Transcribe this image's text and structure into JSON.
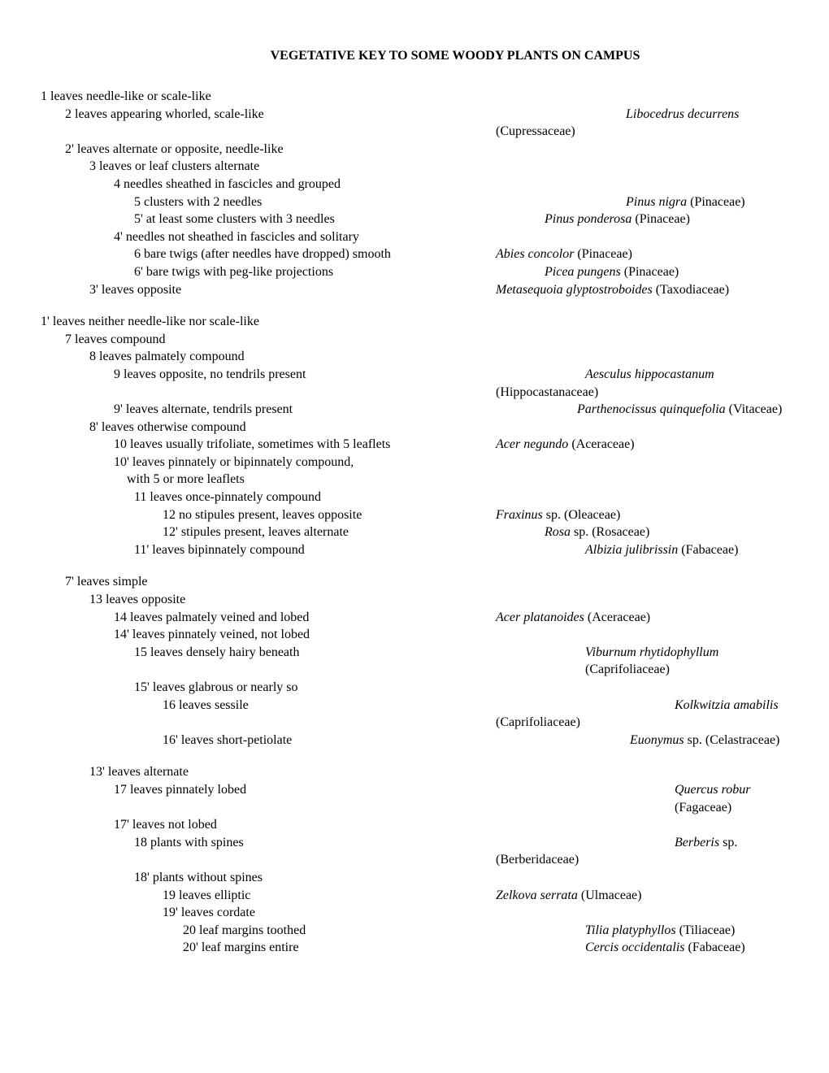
{
  "title": "VEGETATIVE KEY TO SOME WOODY PLANTS ON CAMPUS",
  "rows": [
    {
      "leadIndent": 0,
      "lead": "1 leaves needle-like or scale-like",
      "taxon": "",
      "family": "",
      "resIndent": 0
    },
    {
      "leadIndent": 1,
      "lead": "2 leaves appearing whorled, scale-like",
      "taxon": "Libocedrus decurrens",
      "family": "",
      "resIndent": 4
    },
    {
      "leadIndent": 1,
      "lead": "",
      "taxon": "",
      "family": "(Cupressaceae)",
      "resIndent": 0
    },
    {
      "leadIndent": 1,
      "lead": "2' leaves alternate or opposite, needle-like",
      "taxon": "",
      "family": "",
      "resIndent": 0
    },
    {
      "leadIndent": 2,
      "lead": "3 leaves or leaf clusters alternate",
      "taxon": "",
      "family": "",
      "resIndent": 0
    },
    {
      "leadIndent": 3,
      "lead": "4 needles sheathed in fascicles and grouped",
      "taxon": "",
      "family": "",
      "resIndent": 0
    },
    {
      "leadIndent": 4,
      "lead": "5  clusters with 2 needles",
      "taxon": "Pinus nigra ",
      "family": "(Pinaceae)",
      "resIndent": 4
    },
    {
      "leadIndent": 4,
      "lead": "5' at least some clusters with 3 needles",
      "taxon": "Pinus ponderosa ",
      "family": "(Pinaceae)",
      "resIndent": 1
    },
    {
      "leadIndent": 3,
      "lead": "4' needles not sheathed in fascicles and solitary",
      "taxon": "",
      "family": "",
      "resIndent": 0
    },
    {
      "leadIndent": 4,
      "lead": "6 bare twigs (after needles have dropped) smooth",
      "taxon": "Abies concolor ",
      "family": "(Pinaceae)",
      "resIndent": 0
    },
    {
      "leadIndent": 4,
      "lead": "6' bare twigs with peg-like projections",
      "taxon": "Picea pungens ",
      "family": "(Pinaceae)",
      "resIndent": 1
    },
    {
      "leadIndent": 2,
      "lead": "3' leaves opposite",
      "taxon": "Metasequoia glyptostroboides ",
      "family": "(Taxodiaceae)",
      "resIndent": 0
    },
    {
      "spacer": true
    },
    {
      "leadIndent": 0,
      "lead": "1'  leaves neither needle-like nor scale-like",
      "taxon": "",
      "family": "",
      "resIndent": 0
    },
    {
      "leadIndent": 1,
      "lead": "7 leaves compound",
      "taxon": "",
      "family": "",
      "resIndent": 0
    },
    {
      "leadIndent": 2,
      "lead": "8 leaves palmately compound",
      "taxon": "",
      "family": "",
      "resIndent": 0
    },
    {
      "leadIndent": 3,
      "lead": "9 leaves opposite, no tendrils present",
      "taxon": "Aesculus hippocastanum",
      "family": "",
      "resIndent": 3
    },
    {
      "leadIndent": 3,
      "lead": "",
      "taxon": "",
      "family": "(Hippocastanaceae)",
      "resIndent": 0
    },
    {
      "leadIndent": 3,
      "lead": "9' leaves alternate, tendrils present",
      "taxon": "Parthenocissus quinquefolia ",
      "family": "(Vitaceae)",
      "resIndent": 2
    },
    {
      "leadIndent": 2,
      "lead": "8' leaves otherwise compound",
      "taxon": "",
      "family": "",
      "resIndent": 0
    },
    {
      "leadIndent": 3,
      "lead": "10 leaves usually trifoliate, sometimes with 5 leaflets",
      "taxon": "Acer negundo ",
      "family": "(Aceraceae)",
      "resIndent": 0
    },
    {
      "leadIndent": 3,
      "lead": "10' leaves pinnately or bipinnately compound,",
      "taxon": "",
      "family": "",
      "resIndent": 0
    },
    {
      "leadIndent": 3,
      "lead": "    with 5 or more leaflets",
      "taxon": "",
      "family": "",
      "resIndent": 0
    },
    {
      "leadIndent": 4,
      "lead": "11 leaves once-pinnately compound",
      "taxon": "",
      "family": "",
      "resIndent": 0
    },
    {
      "leadIndent": 5,
      "lead": "12 no stipules present, leaves opposite",
      "taxon": "Fraxinus ",
      "family": "sp.  (Oleaceae)",
      "resIndent": 0
    },
    {
      "leadIndent": 5,
      "lead": "12' stipules present, leaves alternate",
      "taxon": "Rosa ",
      "family": "sp. (Rosaceae)",
      "resIndent": 1
    },
    {
      "leadIndent": 4,
      "lead": "11' leaves bipinnately compound",
      "taxon": "Albizia julibrissin ",
      "family": "(Fabaceae)",
      "resIndent": 3
    },
    {
      "spacer": true
    },
    {
      "leadIndent": 1,
      "lead": "7' leaves simple",
      "taxon": "",
      "family": "",
      "resIndent": 0
    },
    {
      "leadIndent": 2,
      "lead": "13 leaves opposite",
      "taxon": "",
      "family": "",
      "resIndent": 0
    },
    {
      "leadIndent": 3,
      "lead": "14 leaves palmately veined and lobed",
      "taxon": "Acer platanoides ",
      "family": "(Aceraceae)",
      "resIndent": 0
    },
    {
      "leadIndent": 3,
      "lead": "14' leaves pinnately veined, not lobed",
      "taxon": "",
      "family": "",
      "resIndent": 0
    },
    {
      "leadIndent": 4,
      "lead": "15 leaves densely hairy beneath",
      "taxon": "Viburnum rhytidophyllum ",
      "family": "(Caprifoliaceae)",
      "resIndent": 3
    },
    {
      "leadIndent": 4,
      "lead": "15' leaves glabrous or nearly so",
      "taxon": "",
      "family": "",
      "resIndent": 0
    },
    {
      "leadIndent": 5,
      "lead": "16 leaves sessile",
      "taxon": "Kolkwitzia amabilis",
      "family": "",
      "resIndent": 5
    },
    {
      "leadIndent": 5,
      "lead": "",
      "taxon": "",
      "family": "(Caprifoliaceae)",
      "resIndent": 0
    },
    {
      "leadIndent": 5,
      "lead": "16' leaves short-petiolate",
      "taxon": "Euonymus ",
      "family": "sp.  (Celastraceae)",
      "resIndent": 6
    },
    {
      "spacer": true
    },
    {
      "leadIndent": 2,
      "lead": "13' leaves alternate",
      "taxon": "",
      "family": "",
      "resIndent": 0
    },
    {
      "leadIndent": 3,
      "lead": "17 leaves pinnately lobed",
      "taxon": "Quercus robur ",
      "family": "(Fagaceae)",
      "resIndent": 5
    },
    {
      "leadIndent": 3,
      "lead": "17' leaves not lobed",
      "taxon": "",
      "family": "",
      "resIndent": 0
    },
    {
      "leadIndent": 4,
      "lead": "18 plants with spines",
      "taxon": "Berberis ",
      "family": "sp.",
      "resIndent": 5
    },
    {
      "leadIndent": 4,
      "lead": "",
      "taxon": "",
      "family": "(Berberidaceae)",
      "resIndent": 0
    },
    {
      "leadIndent": 4,
      "lead": "18' plants without spines",
      "taxon": "",
      "family": "",
      "resIndent": 0
    },
    {
      "leadIndent": 5,
      "lead": "19 leaves elliptic",
      "taxon": "Zelkova serrata ",
      "family": "(Ulmaceae)",
      "resIndent": 0
    },
    {
      "leadIndent": 5,
      "lead": "19' leaves cordate",
      "taxon": "",
      "family": "",
      "resIndent": 0
    },
    {
      "leadIndent": 6,
      "lead": "20 leaf margins toothed",
      "taxon": "Tilia platyphyllos ",
      "family": "(Tiliaceae)",
      "resIndent": 3
    },
    {
      "leadIndent": 6,
      "lead": "20' leaf margins entire",
      "taxon": "Cercis occidentalis ",
      "family": "(Fabaceae)",
      "resIndent": 3
    }
  ]
}
